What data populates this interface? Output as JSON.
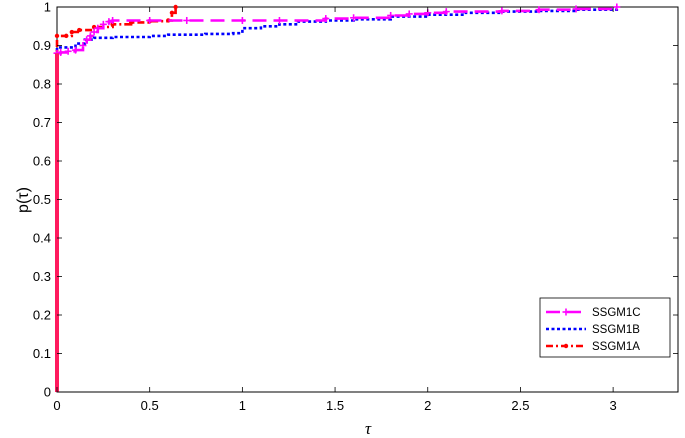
{
  "chart_data": {
    "type": "line",
    "xlabel": "τ",
    "ylabel": "p(τ)",
    "xlim": [
      0,
      3.35
    ],
    "ylim": [
      0,
      1
    ],
    "xticks": [
      0,
      0.5,
      1,
      1.5,
      2,
      2.5,
      3
    ],
    "xtick_labels": [
      "0",
      "0.5",
      "1",
      "1.5",
      "2",
      "2.5",
      "3"
    ],
    "yticks": [
      0,
      0.1,
      0.2,
      0.3,
      0.4,
      0.5,
      0.6,
      0.7,
      0.8,
      0.9,
      1
    ],
    "ytick_labels": [
      "0",
      "0.1",
      "0.2",
      "0.3",
      "0.4",
      "0.5",
      "0.6",
      "0.7",
      "0.8",
      "0.9",
      "1"
    ],
    "grid": false,
    "legend_position": "bottom-right",
    "series": [
      {
        "name": "SSGM1C",
        "color": "#ff00ff",
        "style": "dash",
        "marker": "plus",
        "x": [
          0,
          0,
          0.02,
          0.06,
          0.1,
          0.14,
          0.16,
          0.18,
          0.2,
          0.22,
          0.25,
          0.28,
          0.3,
          0.5,
          0.7,
          1.0,
          1.2,
          1.45,
          1.6,
          1.8,
          1.9,
          2.0,
          2.1,
          2.4,
          2.6,
          2.8,
          3.02
        ],
        "y": [
          0,
          0.88,
          0.882,
          0.885,
          0.888,
          0.9,
          0.915,
          0.925,
          0.935,
          0.945,
          0.955,
          0.962,
          0.965,
          0.965,
          0.965,
          0.965,
          0.965,
          0.97,
          0.972,
          0.978,
          0.982,
          0.985,
          0.988,
          0.99,
          0.993,
          0.995,
          1.0
        ]
      },
      {
        "name": "SSGM1B",
        "color": "#0000ff",
        "style": "dot",
        "marker": "none",
        "x": [
          0,
          0,
          0.05,
          0.1,
          0.15,
          0.2,
          0.3,
          0.5,
          0.6,
          0.8,
          0.95,
          1.0,
          1.1,
          1.2,
          1.3,
          1.45,
          1.6,
          1.8,
          2.0,
          2.2,
          2.4,
          2.6,
          2.8,
          3.02
        ],
        "y": [
          0,
          0.895,
          0.895,
          0.905,
          0.915,
          0.92,
          0.922,
          0.925,
          0.928,
          0.93,
          0.932,
          0.945,
          0.95,
          0.955,
          0.962,
          0.965,
          0.968,
          0.975,
          0.98,
          0.985,
          0.988,
          0.99,
          0.993,
          0.995
        ]
      },
      {
        "name": "SSGM1A",
        "color": "#ff0000",
        "style": "dashdot",
        "marker": "dot",
        "x": [
          0,
          0,
          0.05,
          0.08,
          0.12,
          0.2,
          0.3,
          0.4,
          0.5,
          0.6,
          0.62,
          0.64
        ],
        "y": [
          0,
          0.925,
          0.925,
          0.935,
          0.94,
          0.948,
          0.955,
          0.96,
          0.963,
          0.965,
          0.985,
          1.0
        ]
      }
    ]
  }
}
